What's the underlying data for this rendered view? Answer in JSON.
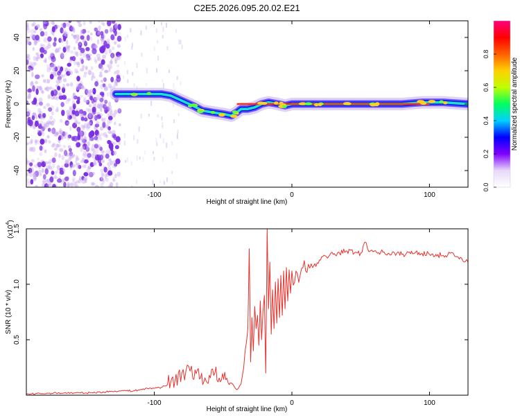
{
  "figure": {
    "title": "C2E5.2026.095.20.02.E21"
  },
  "colors": {
    "snr_line": "#e8302a",
    "spectrogram_noise": "#7a2fe0",
    "axis": "#000000"
  },
  "chart_data": [
    {
      "type": "heatmap",
      "name": "spectrogram",
      "xlabel": "Height of straight line (km)",
      "ylabel": "Frequency (Hz)",
      "xlim": [
        -193,
        128
      ],
      "ylim": [
        -50,
        50
      ],
      "x_ticks": [
        -100,
        0,
        100
      ],
      "x_tick_labels": [
        "-100",
        "0",
        "100"
      ],
      "y_ticks": [
        -40,
        -20,
        0,
        20,
        40
      ],
      "y_tick_labels": [
        "-40",
        "-20",
        "0",
        "20",
        "40"
      ],
      "noise_region_x": [
        -193,
        -125
      ],
      "signal_track": {
        "x": [
          -128,
          -115,
          -105,
          -95,
          -88,
          -80,
          -72,
          -65,
          -58,
          -50,
          -44,
          -40,
          -37,
          -32,
          -27,
          -22,
          -17,
          -10,
          -5,
          0,
          10,
          20,
          40,
          60,
          80,
          95,
          100,
          110,
          128
        ],
        "freq": [
          6,
          6,
          6,
          6,
          5,
          2,
          -1,
          -4,
          -5,
          -6,
          -7,
          -5,
          -3,
          -3,
          -2,
          0,
          1,
          0,
          -1,
          0,
          0,
          0,
          0,
          0,
          0,
          1,
          1,
          1,
          0
        ]
      }
    },
    {
      "type": "colorbar",
      "name": "colorbar",
      "label": "Normalized spectral amplitude",
      "range": [
        0,
        1
      ],
      "ticks": [
        0.0,
        0.2,
        0.4,
        0.6,
        0.8
      ],
      "tick_labels": [
        "0.0",
        "0.2",
        "0.4",
        "0.6",
        "0.8"
      ],
      "colormap": [
        "#ffffff",
        "#e8d8f8",
        "#8000ff",
        "#0000ff",
        "#00d0ff",
        "#00ff60",
        "#c0ff00",
        "#ffd000",
        "#ff6000",
        "#ff0000",
        "#ff0080"
      ]
    },
    {
      "type": "line",
      "name": "snr",
      "xlabel": "Height of straight line (km)",
      "ylabel": "SNR (10 * v/v)",
      "ylabel_multiplier": "(x10",
      "ylabel_exponent": "4",
      "xlim": [
        -193,
        128
      ],
      "ylim": [
        0,
        1.5
      ],
      "x_ticks": [
        -100,
        0,
        100
      ],
      "x_tick_labels": [
        "-100",
        "0",
        "100"
      ],
      "y_ticks": [
        0.5,
        1.0,
        1.5
      ],
      "y_tick_labels": [
        "0.5",
        "1.0",
        "1.5"
      ],
      "series": [
        {
          "name": "SNR",
          "x": [
            -193,
            -170,
            -150,
            -135,
            -125,
            -115,
            -105,
            -95,
            -85,
            -80,
            -77,
            -75,
            -72,
            -68,
            -64,
            -60,
            -56,
            -52,
            -48,
            -44,
            -40,
            -37,
            -35,
            -33,
            -32,
            -31,
            -30,
            -29,
            -28,
            -27,
            -26,
            -25,
            -24,
            -23,
            -22,
            -20,
            -19,
            -18,
            -17,
            -16,
            -15,
            -14,
            -13,
            -12,
            -11,
            -10,
            -9,
            -8,
            -7,
            -6,
            -5,
            -4,
            -3,
            -2,
            -1,
            0,
            2,
            4,
            6,
            8,
            10,
            12,
            15,
            20,
            25,
            30,
            40,
            50,
            53,
            55,
            57,
            60,
            70,
            80,
            90,
            100,
            110,
            115,
            120,
            125,
            128
          ],
          "y": [
            0.01,
            0.02,
            0.02,
            0.03,
            0.04,
            0.04,
            0.06,
            0.07,
            0.13,
            0.2,
            0.22,
            0.26,
            0.15,
            0.24,
            0.12,
            0.18,
            0.2,
            0.12,
            0.14,
            0.11,
            0.05,
            0.1,
            0.25,
            0.48,
            0.6,
            1.32,
            0.3,
            0.7,
            0.4,
            0.8,
            0.6,
            0.72,
            0.45,
            0.85,
            0.5,
            0.9,
            0.2,
            1.5,
            0.78,
            1.2,
            0.55,
            0.95,
            0.6,
            1.02,
            0.65,
            1.05,
            0.7,
            1.08,
            0.72,
            1.12,
            0.78,
            1.15,
            0.85,
            1.13,
            0.92,
            1.12,
            1.02,
            1.1,
            1.08,
            1.15,
            1.12,
            1.18,
            1.15,
            1.22,
            1.25,
            1.27,
            1.3,
            1.28,
            1.38,
            1.32,
            1.3,
            1.3,
            1.28,
            1.27,
            1.29,
            1.27,
            1.26,
            1.28,
            1.25,
            1.2,
            1.2
          ]
        }
      ]
    }
  ]
}
